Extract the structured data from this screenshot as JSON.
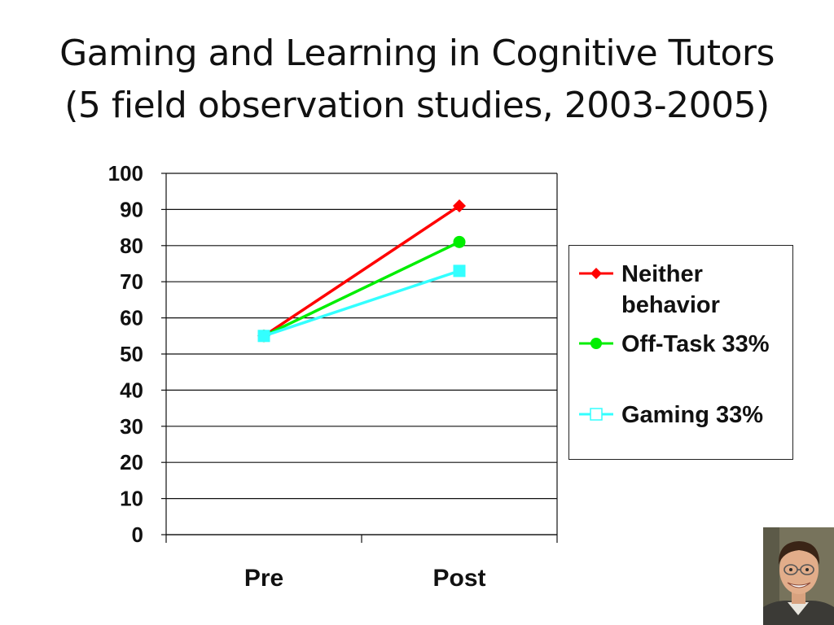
{
  "slide": {
    "title_line1": "Gaming and Learning in Cognitive Tutors",
    "title_line2": "(5 field observation studies, 2003-2005)"
  },
  "chart_data": {
    "type": "line",
    "categories": [
      "Pre",
      "Post"
    ],
    "ylim": [
      0,
      100
    ],
    "yticks": [
      0,
      10,
      20,
      30,
      40,
      50,
      60,
      70,
      80,
      90,
      100
    ],
    "grid": true,
    "legend_position": "right",
    "series": [
      {
        "name": "Neither behavior",
        "values": [
          55,
          91
        ],
        "color": "#ff0000",
        "marker": "diamond"
      },
      {
        "name": "Off-Task 33%",
        "values": [
          55,
          81
        ],
        "color": "#00ee00",
        "marker": "circle"
      },
      {
        "name": "Gaming 33%",
        "values": [
          55,
          73
        ],
        "color": "#33ffff",
        "marker": "square"
      }
    ]
  },
  "photo": {
    "icon": "portrait-photo"
  }
}
